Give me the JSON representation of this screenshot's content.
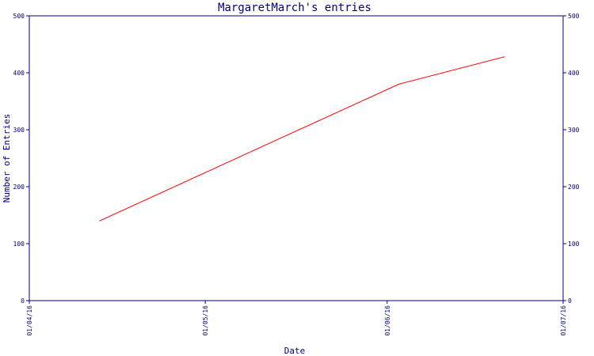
{
  "chart_data": {
    "type": "line",
    "title": "MargaretMarch's entries",
    "xlabel": "Date",
    "ylabel": "Number of Entries",
    "x_ticks": [
      "01/04/16",
      "01/05/16",
      "01/06/16",
      "01/07/16"
    ],
    "x_range": [
      "01/04/16",
      "01/07/16"
    ],
    "y_ticks": [
      0,
      100,
      200,
      300,
      400,
      500
    ],
    "ylim": [
      0,
      500
    ],
    "secondary_y_axis": true,
    "grid": false,
    "colors": {
      "axis": "#000080",
      "line": "#ff0000",
      "background": "#ffffff"
    },
    "series": [
      {
        "x": [
          "13/04/16",
          "11/05/16",
          "03/06/16",
          "21/06/16"
        ],
        "values": [
          140,
          272,
          380,
          428
        ]
      }
    ]
  }
}
